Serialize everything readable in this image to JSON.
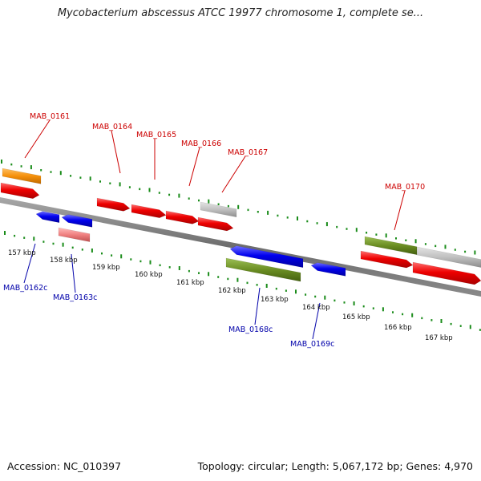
{
  "header": {
    "title": "Mycobacterium abscessus ATCC 19977 chromosome 1, complete se..."
  },
  "footer": {
    "accession": "Accession: NC_010397",
    "stats": "Topology: circular; Length: 5,067,172 bp; Genes: 4,970"
  },
  "colors": {
    "forward_gene": "#ee0000",
    "reverse_gene": "#0000ee",
    "pseudo_gene": "#f08080",
    "gray_gene": "#c0c0c0",
    "orange_gene": "#f5900b",
    "olive_gene": "#6b8e23",
    "forward_label": "#cc0000",
    "reverse_label": "#0000aa",
    "gc_ticks": "#1a8c1a"
  },
  "scale_labels": [
    "157 kbp",
    "158 kbp",
    "159 kbp",
    "160 kbp",
    "161 kbp",
    "162 kbp",
    "163 kbp",
    "164 kbp",
    "165 kbp",
    "166 kbp",
    "167 kbp"
  ],
  "gene_labels": [
    {
      "name": "MAB_0161",
      "strand": "forward"
    },
    {
      "name": "MAB_0164",
      "strand": "forward"
    },
    {
      "name": "MAB_0165",
      "strand": "forward"
    },
    {
      "name": "MAB_0166",
      "strand": "forward"
    },
    {
      "name": "MAB_0167",
      "strand": "forward"
    },
    {
      "name": "MAB_0170",
      "strand": "forward"
    },
    {
      "name": "MAB_0162c",
      "strand": "reverse"
    },
    {
      "name": "MAB_0163c",
      "strand": "reverse"
    },
    {
      "name": "MAB_0168c",
      "strand": "reverse"
    },
    {
      "name": "MAB_0169c",
      "strand": "reverse"
    }
  ]
}
